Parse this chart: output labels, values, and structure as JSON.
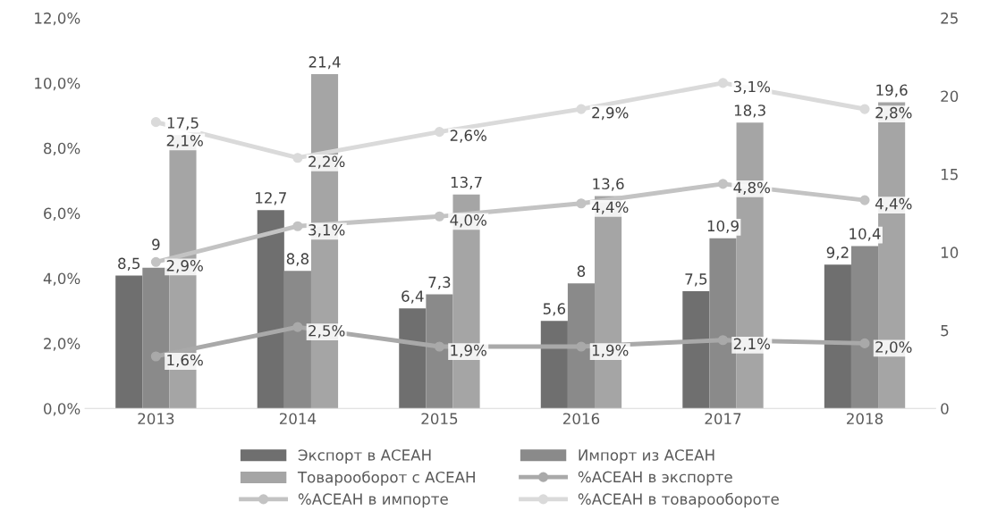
{
  "chart_data": {
    "type": "bar",
    "categories": [
      "2013",
      "2014",
      "2015",
      "2016",
      "2017",
      "2018"
    ],
    "ylim": [
      0,
      12
    ],
    "yticks": [
      {
        "value": 0,
        "label": "0,0%"
      },
      {
        "value": 2,
        "label": "2,0%"
      },
      {
        "value": 4,
        "label": "4,0%"
      },
      {
        "value": 6,
        "label": "6,0%"
      },
      {
        "value": 8,
        "label": "8,0%"
      },
      {
        "value": 10,
        "label": "10,0%"
      },
      {
        "value": 12,
        "label": "12,0%"
      }
    ],
    "y2lim": [
      0,
      25
    ],
    "y2ticks": [
      0,
      5,
      10,
      15,
      20,
      25
    ],
    "grid": false,
    "legend": "bottom",
    "series": [
      {
        "name": "Экспорт в АСЕАН",
        "axis": "y2",
        "color": "#6f6f6f",
        "values": [
          8.5,
          12.7,
          6.4,
          5.6,
          7.5,
          9.2
        ],
        "value_labels": [
          "8,5",
          "12,7",
          "6,4",
          "5,6",
          "7,5",
          "9,2"
        ]
      },
      {
        "name": "Импорт из АСЕАН",
        "axis": "y2",
        "color": "#8a8a8a",
        "values": [
          9,
          8.8,
          7.3,
          8,
          10.9,
          10.4
        ],
        "value_labels": [
          "9",
          "8,8",
          "7,3",
          "8",
          "10,9",
          "10,4"
        ]
      },
      {
        "name": "Товарооборот с АСЕАН",
        "axis": "y2",
        "color": "#a5a5a5",
        "values": [
          17.5,
          21.4,
          13.7,
          13.6,
          18.3,
          19.6
        ],
        "value_labels": [
          "17,5",
          "21,4",
          "13,7",
          "13,6",
          "18,3",
          "19,6"
        ]
      },
      {
        "name": "%АСЕАН в экспорте",
        "type": "line",
        "axis": "y",
        "marker": "circle",
        "color": "#a9a9a9",
        "values": [
          1.6,
          2.5,
          1.9,
          1.9,
          2.1,
          2.0
        ],
        "value_labels": [
          "1,6%",
          "2,5%",
          "1,9%",
          "1,9%",
          "2,1%",
          "2,0%"
        ]
      },
      {
        "name": "%АСЕАН в импорте",
        "type": "line",
        "axis": "y",
        "marker": "circle",
        "color": "#c3c3c3",
        "values": [
          4.5,
          5.6,
          5.9,
          6.3,
          6.9,
          6.4
        ]
      },
      {
        "name": "%АСЕАН в товарообороте",
        "type": "line",
        "axis": "y",
        "marker": "circle",
        "color": "#dadada",
        "values": [
          8.8,
          7.7,
          8.5,
          9.2,
          10.0,
          9.2
        ]
      }
    ],
    "annotations": [
      {
        "text": "2,9%",
        "x": "2013",
        "y": 4.5
      },
      {
        "text": "3,1%",
        "x": "2014",
        "y": 5.6
      },
      {
        "text": "4,0%",
        "x": "2015",
        "y": 5.9
      },
      {
        "text": "4,4%",
        "x": "2016",
        "y": 6.3
      },
      {
        "text": "4,8%",
        "x": "2017",
        "y": 6.9
      },
      {
        "text": "4,4%",
        "x": "2018",
        "y": 6.4
      },
      {
        "text": "2,1%",
        "x": "2013",
        "y": 8.8
      },
      {
        "text": "2,2%",
        "x": "2014",
        "y": 7.7
      },
      {
        "text": "2,6%",
        "x": "2015",
        "y": 8.5
      },
      {
        "text": "2,9%",
        "x": "2016",
        "y": 9.2
      },
      {
        "text": "3,1%",
        "x": "2017",
        "y": 10.0
      },
      {
        "text": "2,8%",
        "x": "2018",
        "y": 9.2
      }
    ]
  }
}
